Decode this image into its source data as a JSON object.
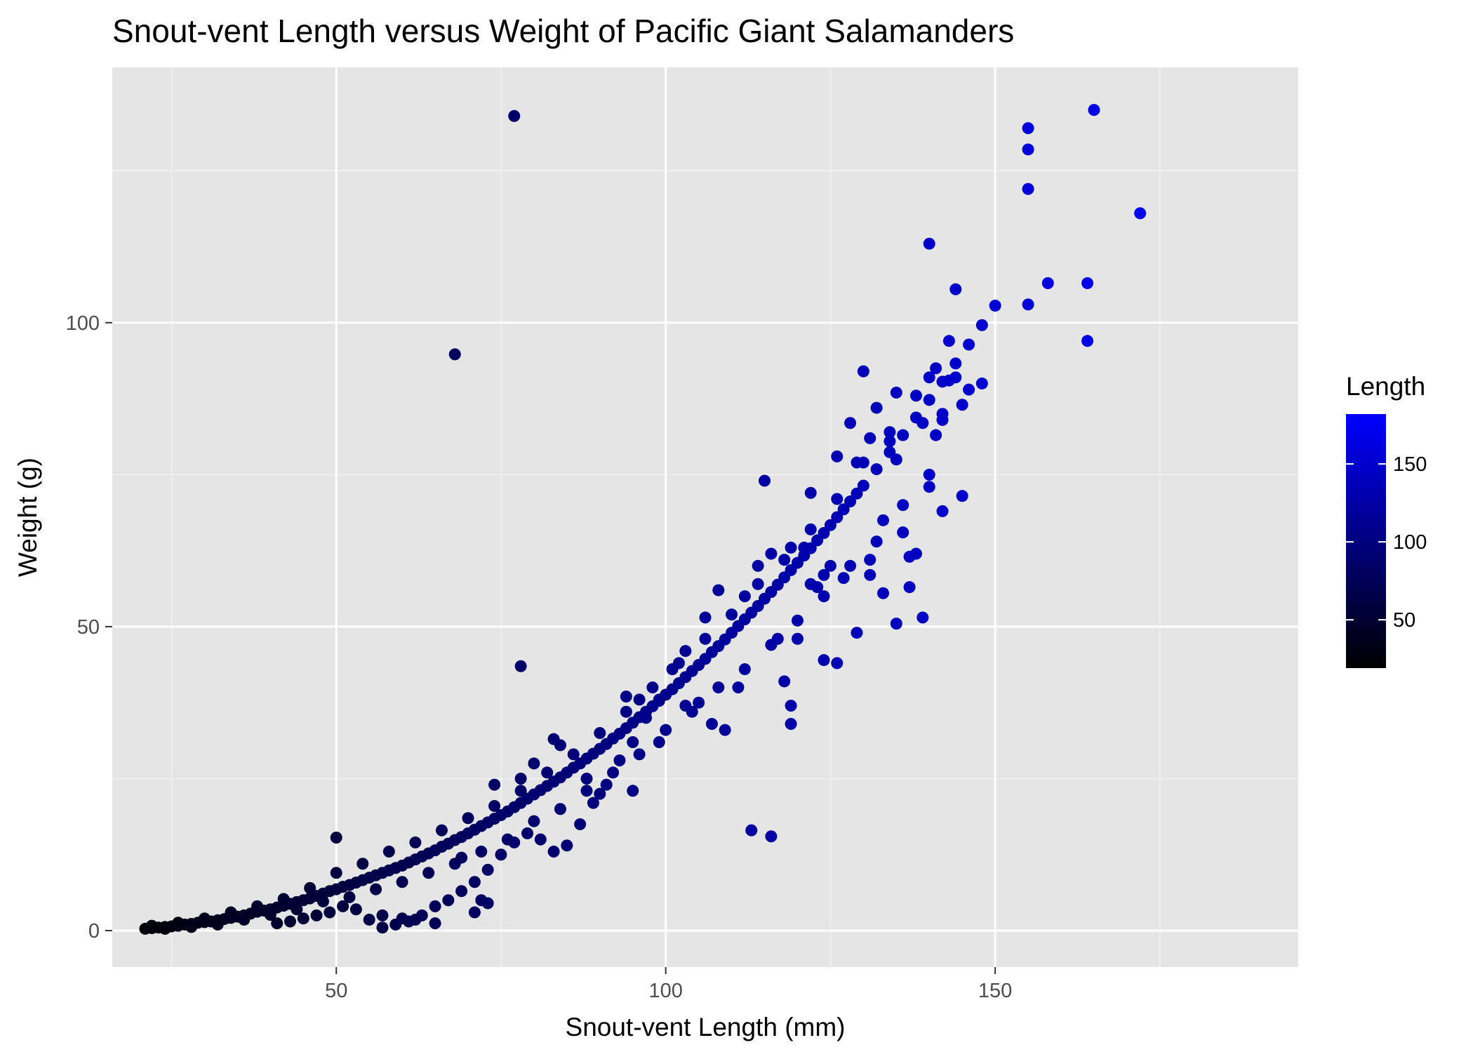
{
  "chart_data": {
    "type": "scatter",
    "title": "Snout-vent Length versus Weight of Pacific Giant Salamanders",
    "xlabel": "Snout-vent Length (mm)",
    "ylabel": "Weight (g)",
    "xlim": [
      16,
      196
    ],
    "ylim": [
      -6,
      142
    ],
    "x_ticks": [
      50,
      100,
      150
    ],
    "y_ticks": [
      0,
      50,
      100
    ],
    "grid": true,
    "panel_background": "#e5e5e5",
    "point_color_low": "#000000",
    "point_color_high": "#0000ff",
    "legend": {
      "title": "Length",
      "position": "right",
      "range": [
        19,
        182
      ],
      "ticks": [
        50,
        100,
        150
      ]
    },
    "series": [
      {
        "points": [
          [
            21,
            0.3
          ],
          [
            22,
            0.4
          ],
          [
            23,
            0.5
          ],
          [
            24,
            0.6
          ],
          [
            25,
            0.7
          ],
          [
            26,
            0.8
          ],
          [
            27,
            1.0
          ],
          [
            28,
            1.1
          ],
          [
            29,
            1.3
          ],
          [
            30,
            1.4
          ],
          [
            31,
            1.5
          ],
          [
            32,
            1.7
          ],
          [
            33,
            1.9
          ],
          [
            34,
            2.1
          ],
          [
            35,
            2.3
          ],
          [
            36,
            2.5
          ],
          [
            37,
            2.8
          ],
          [
            38,
            3.1
          ],
          [
            39,
            3.3
          ],
          [
            40,
            3.5
          ],
          [
            41,
            3.8
          ],
          [
            42,
            4.1
          ],
          [
            43,
            4.4
          ],
          [
            44,
            4.7
          ],
          [
            45,
            5.0
          ],
          [
            46,
            5.3
          ],
          [
            47,
            5.7
          ],
          [
            48,
            6.1
          ],
          [
            49,
            6.5
          ],
          [
            50,
            6.8
          ],
          [
            51,
            7.2
          ],
          [
            52,
            7.5
          ],
          [
            53,
            7.9
          ],
          [
            54,
            8.3
          ],
          [
            55,
            8.7
          ],
          [
            56,
            9.1
          ],
          [
            57,
            9.5
          ],
          [
            58,
            9.9
          ],
          [
            59,
            10.3
          ],
          [
            60,
            10.7
          ],
          [
            61,
            11.2
          ],
          [
            62,
            11.7
          ],
          [
            63,
            12.2
          ],
          [
            64,
            12.7
          ],
          [
            65,
            13.2
          ],
          [
            66,
            13.8
          ],
          [
            67,
            14.3
          ],
          [
            68,
            14.9
          ],
          [
            69,
            15.4
          ],
          [
            70,
            16.0
          ],
          [
            71,
            16.6
          ],
          [
            72,
            17.2
          ],
          [
            73,
            17.8
          ],
          [
            74,
            18.4
          ],
          [
            75,
            19.0
          ],
          [
            76,
            19.6
          ],
          [
            77,
            20.3
          ],
          [
            78,
            21.0
          ],
          [
            79,
            21.7
          ],
          [
            80,
            22.4
          ],
          [
            81,
            23.1
          ],
          [
            82,
            23.8
          ],
          [
            83,
            24.5
          ],
          [
            84,
            25.2
          ],
          [
            85,
            26.0
          ],
          [
            86,
            26.8
          ],
          [
            87,
            27.5
          ],
          [
            88,
            28.3
          ],
          [
            89,
            29.1
          ],
          [
            90,
            29.9
          ],
          [
            91,
            30.7
          ],
          [
            92,
            31.6
          ],
          [
            93,
            32.4
          ],
          [
            94,
            33.3
          ],
          [
            95,
            34.2
          ],
          [
            96,
            35.1
          ],
          [
            97,
            36.0
          ],
          [
            98,
            36.9
          ],
          [
            99,
            37.8
          ],
          [
            100,
            38.8
          ],
          [
            101,
            39.7
          ],
          [
            102,
            40.7
          ],
          [
            103,
            41.7
          ],
          [
            104,
            42.7
          ],
          [
            105,
            43.7
          ],
          [
            106,
            44.7
          ],
          [
            107,
            45.8
          ],
          [
            108,
            46.8
          ],
          [
            109,
            47.9
          ],
          [
            110,
            49.0
          ],
          [
            111,
            50.1
          ],
          [
            112,
            51.2
          ],
          [
            113,
            52.3
          ],
          [
            114,
            53.4
          ],
          [
            115,
            54.6
          ],
          [
            116,
            55.7
          ],
          [
            117,
            56.9
          ],
          [
            118,
            58.1
          ],
          [
            119,
            59.3
          ],
          [
            120,
            60.5
          ],
          [
            121,
            61.7
          ],
          [
            122,
            62.9
          ],
          [
            123,
            64.2
          ],
          [
            124,
            65.4
          ],
          [
            125,
            66.7
          ],
          [
            126,
            68.0
          ],
          [
            127,
            69.3
          ],
          [
            128,
            70.6
          ],
          [
            129,
            71.9
          ],
          [
            130,
            73.2
          ],
          [
            132,
            75.9
          ],
          [
            134,
            78.7
          ],
          [
            136,
            81.5
          ],
          [
            138,
            84.4
          ],
          [
            140,
            87.3
          ],
          [
            142,
            90.3
          ],
          [
            144,
            93.3
          ],
          [
            146,
            96.4
          ],
          [
            148,
            99.6
          ],
          [
            150,
            102.8
          ],
          [
            22,
            0.8
          ],
          [
            24,
            0.3
          ],
          [
            26,
            1.3
          ],
          [
            28,
            0.6
          ],
          [
            30,
            2.0
          ],
          [
            32,
            1.0
          ],
          [
            34,
            3.0
          ],
          [
            36,
            1.8
          ],
          [
            38,
            4.0
          ],
          [
            40,
            2.6
          ],
          [
            42,
            5.2
          ],
          [
            44,
            3.5
          ],
          [
            46,
            7.0
          ],
          [
            48,
            4.8
          ],
          [
            50,
            9.5
          ],
          [
            52,
            5.5
          ],
          [
            54,
            11.0
          ],
          [
            56,
            6.8
          ],
          [
            58,
            13.0
          ],
          [
            60,
            8.0
          ],
          [
            62,
            14.5
          ],
          [
            64,
            9.5
          ],
          [
            66,
            16.5
          ],
          [
            68,
            11.0
          ],
          [
            70,
            18.5
          ],
          [
            72,
            13.0
          ],
          [
            74,
            20.5
          ],
          [
            76,
            15.0
          ],
          [
            78,
            23.0
          ],
          [
            80,
            18.0
          ],
          [
            82,
            26.0
          ],
          [
            84,
            20.0
          ],
          [
            86,
            29.0
          ],
          [
            88,
            23.0
          ],
          [
            90,
            32.5
          ],
          [
            92,
            26.0
          ],
          [
            94,
            36.0
          ],
          [
            96,
            29.0
          ],
          [
            98,
            40.0
          ],
          [
            100,
            33.0
          ],
          [
            102,
            44.0
          ],
          [
            104,
            36.0
          ],
          [
            106,
            48.0
          ],
          [
            108,
            40.0
          ],
          [
            110,
            52.0
          ],
          [
            112,
            43.0
          ],
          [
            114,
            57.0
          ],
          [
            116,
            47.0
          ],
          [
            118,
            61.0
          ],
          [
            120,
            51.0
          ],
          [
            122,
            66.0
          ],
          [
            124,
            55.0
          ],
          [
            126,
            71.0
          ],
          [
            128,
            60.0
          ],
          [
            130,
            77.0
          ],
          [
            132,
            64.0
          ],
          [
            134,
            82.0
          ],
          [
            136,
            70.0
          ],
          [
            138,
            88.0
          ],
          [
            140,
            75.0
          ],
          [
            142,
            85.0
          ],
          [
            144,
            91.0
          ],
          [
            146,
            89.0
          ],
          [
            148,
            90.0
          ],
          [
            145,
            86.5
          ],
          [
            143,
            90.5
          ],
          [
            141,
            92.5
          ],
          [
            139,
            83.5
          ],
          [
            137,
            61.5
          ],
          [
            139,
            51.5
          ],
          [
            135,
            50.5
          ],
          [
            133,
            55.5
          ],
          [
            131,
            58.5
          ],
          [
            129,
            49.0
          ],
          [
            126,
            44.0
          ],
          [
            124,
            44.5
          ],
          [
            120,
            48.0
          ],
          [
            118,
            41.0
          ],
          [
            119,
            37.0
          ],
          [
            119,
            34.0
          ],
          [
            113,
            16.5
          ],
          [
            116,
            15.5
          ],
          [
            115,
            74.0
          ],
          [
            122,
            72.0
          ],
          [
            128,
            83.5
          ],
          [
            130,
            92.0
          ],
          [
            135,
            88.5
          ],
          [
            140,
            113.0
          ],
          [
            142,
            69.0
          ],
          [
            145,
            71.5
          ],
          [
            140,
            73.0
          ],
          [
            137,
            56.5
          ],
          [
            136,
            65.5
          ],
          [
            133,
            67.5
          ],
          [
            131,
            61.0
          ],
          [
            127,
            58.0
          ],
          [
            125,
            60.0
          ],
          [
            123,
            56.5
          ],
          [
            121,
            63.0
          ],
          [
            117,
            48.0
          ],
          [
            108,
            56.0
          ],
          [
            106,
            51.5
          ],
          [
            103,
            46.0
          ],
          [
            101,
            43.0
          ],
          [
            99,
            38.0
          ],
          [
            97,
            35.0
          ],
          [
            95,
            31.0
          ],
          [
            93,
            28.0
          ],
          [
            91,
            24.0
          ],
          [
            89,
            21.0
          ],
          [
            87,
            17.5
          ],
          [
            85,
            14.0
          ],
          [
            83,
            13.0
          ],
          [
            81,
            15.0
          ],
          [
            79,
            16.0
          ],
          [
            77,
            14.5
          ],
          [
            75,
            12.5
          ],
          [
            73,
            10.0
          ],
          [
            71,
            8.0
          ],
          [
            69,
            6.5
          ],
          [
            67,
            5.0
          ],
          [
            65,
            4.0
          ],
          [
            63,
            2.5
          ],
          [
            61,
            1.5
          ],
          [
            59,
            1.0
          ],
          [
            57,
            2.5
          ],
          [
            55,
            1.8
          ],
          [
            53,
            3.5
          ],
          [
            51,
            4.0
          ],
          [
            49,
            3.0
          ],
          [
            47,
            2.5
          ],
          [
            45,
            2.0
          ],
          [
            43,
            1.5
          ],
          [
            41,
            1.2
          ],
          [
            72,
            5.0
          ],
          [
            73,
            4.5
          ],
          [
            71,
            3.0
          ],
          [
            69,
            12.0
          ],
          [
            74,
            24.0
          ],
          [
            78,
            25.0
          ],
          [
            83,
            31.5
          ],
          [
            80,
            27.5
          ],
          [
            84,
            30.5
          ],
          [
            88,
            25.0
          ],
          [
            96,
            38.0
          ],
          [
            94,
            38.5
          ],
          [
            99,
            31.0
          ],
          [
            103,
            37.0
          ],
          [
            105,
            37.5
          ],
          [
            107,
            34.0
          ],
          [
            109,
            33.0
          ],
          [
            111,
            40.0
          ],
          [
            112,
            55.0
          ],
          [
            114,
            60.0
          ],
          [
            116,
            62.0
          ],
          [
            119,
            63.0
          ],
          [
            122,
            57.0
          ],
          [
            124,
            58.5
          ],
          [
            126,
            78.0
          ],
          [
            129,
            77.0
          ],
          [
            131,
            81.0
          ],
          [
            132,
            86.0
          ],
          [
            134,
            80.5
          ],
          [
            135,
            77.5
          ],
          [
            138,
            62.0
          ],
          [
            141,
            81.5
          ],
          [
            142,
            84.0
          ],
          [
            140,
            91.0
          ],
          [
            143,
            97.0
          ],
          [
            144,
            105.5
          ],
          [
            155,
            103.0
          ],
          [
            155,
            128.5
          ],
          [
            155,
            122.0
          ],
          [
            158,
            106.5
          ],
          [
            164,
            106.5
          ],
          [
            164,
            97.0
          ],
          [
            165,
            135.0
          ],
          [
            172,
            118.0
          ],
          [
            155,
            132.0
          ],
          [
            77,
            134.0
          ],
          [
            68,
            94.8
          ],
          [
            78,
            43.5
          ],
          [
            50,
            15.3
          ],
          [
            95,
            23.0
          ],
          [
            90,
            22.5
          ],
          [
            60,
            2.0
          ],
          [
            57,
            0.5
          ],
          [
            65,
            1.2
          ],
          [
            62,
            1.8
          ]
        ]
      }
    ]
  }
}
